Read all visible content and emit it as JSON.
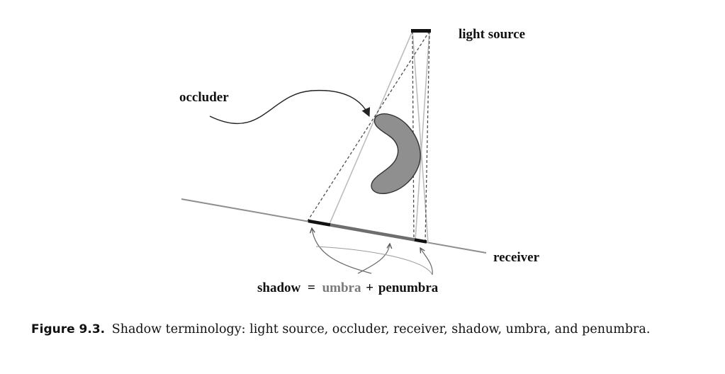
{
  "labels": {
    "light_source": "light source",
    "occluder": "occluder",
    "receiver": "receiver",
    "shadow": "shadow",
    "equals": "=",
    "umbra": "umbra",
    "plus": "+",
    "penumbra": "penumbra"
  },
  "caption": {
    "figure_number": "Figure 9.3.",
    "text": "Shadow terminology: light source, occluder, receiver, shadow, umbra, and penumbra."
  },
  "colors": {
    "occluder_fill": "#8c8c8c",
    "umbra": "#707070",
    "penumbra": "#111111",
    "receiver": "#888888",
    "ray": "#b5b5b5",
    "dashed_ray": "#555555"
  }
}
